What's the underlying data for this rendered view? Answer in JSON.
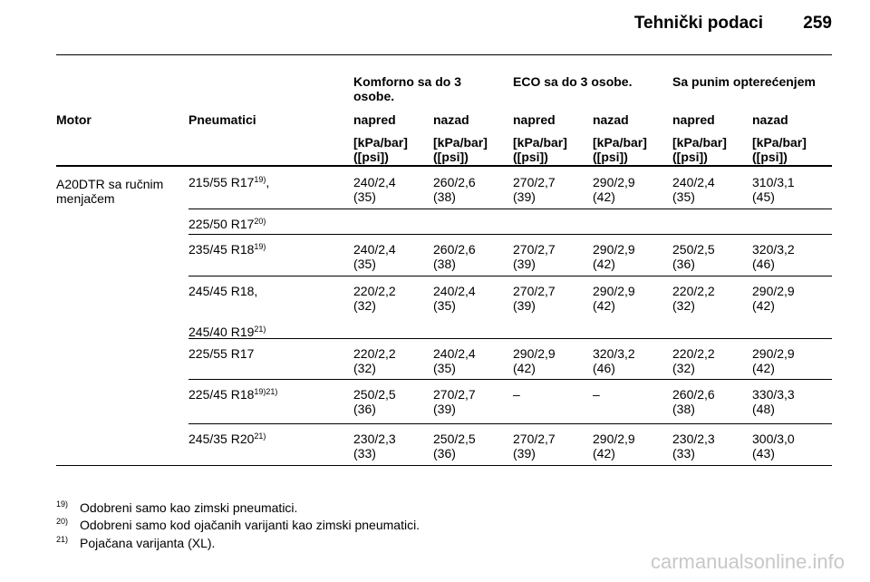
{
  "header": {
    "title": "Tehnički podaci",
    "page": "259"
  },
  "table": {
    "groups": [
      "Komforno sa do 3 osobe.",
      "ECO sa do 3 osobe.",
      "Sa punim opterećenjem"
    ],
    "columns": [
      "Motor",
      "Pneumatici",
      "napred",
      "nazad",
      "napred",
      "nazad",
      "napred",
      "nazad"
    ],
    "units": [
      "[kPa/bar] ([psi])",
      "[kPa/bar] ([psi])",
      "[kPa/bar] ([psi])",
      "[kPa/bar] ([psi])",
      "[kPa/bar] ([psi])",
      "[kPa/bar] ([psi])"
    ],
    "motor": "A20DTR sa ručnim menjačem",
    "rows": [
      {
        "tires": [
          {
            "text": "215/55 R17",
            "note": "19)",
            "suffix": ","
          }
        ],
        "values": [
          {
            "kpa": "240/2,4",
            "psi": "(35)"
          },
          {
            "kpa": "260/2,6",
            "psi": "(38)"
          },
          {
            "kpa": "270/2,7",
            "psi": "(39)"
          },
          {
            "kpa": "290/2,9",
            "psi": "(42)"
          },
          {
            "kpa": "240/2,4",
            "psi": "(35)"
          },
          {
            "kpa": "310/3,1",
            "psi": "(45)"
          }
        ]
      },
      {
        "tires": [
          {
            "text": "225/50 R17",
            "note": "20)"
          }
        ],
        "values": []
      },
      {
        "tires": [
          {
            "text": "235/45 R18",
            "note": "19)"
          }
        ],
        "values": [
          {
            "kpa": "240/2,4",
            "psi": "(35)"
          },
          {
            "kpa": "260/2,6",
            "psi": "(38)"
          },
          {
            "kpa": "270/2,7",
            "psi": "(39)"
          },
          {
            "kpa": "290/2,9",
            "psi": "(42)"
          },
          {
            "kpa": "250/2,5",
            "psi": "(36)"
          },
          {
            "kpa": "320/3,2",
            "psi": "(46)"
          }
        ]
      },
      {
        "tires": [
          {
            "text": "245/45 R18,"
          },
          {
            "text": "245/40 R19",
            "note": "21)"
          }
        ],
        "values": [
          {
            "kpa": "220/2,2",
            "psi": "(32)"
          },
          {
            "kpa": "240/2,4",
            "psi": "(35)"
          },
          {
            "kpa": "270/2,7",
            "psi": "(39)"
          },
          {
            "kpa": "290/2,9",
            "psi": "(42)"
          },
          {
            "kpa": "220/2,2",
            "psi": "(32)"
          },
          {
            "kpa": "290/2,9",
            "psi": "(42)"
          }
        ]
      },
      {
        "tires": [
          {
            "text": "225/55 R17"
          }
        ],
        "values": [
          {
            "kpa": "220/2,2",
            "psi": "(32)"
          },
          {
            "kpa": "240/2,4",
            "psi": "(35)"
          },
          {
            "kpa": "290/2,9",
            "psi": "(42)"
          },
          {
            "kpa": "320/3,2",
            "psi": "(46)"
          },
          {
            "kpa": "220/2,2",
            "psi": "(32)"
          },
          {
            "kpa": "290/2,9",
            "psi": "(42)"
          }
        ]
      },
      {
        "tires": [
          {
            "text": "225/45 R18",
            "note": "19)21)"
          }
        ],
        "values": [
          {
            "kpa": "250/2,5",
            "psi": "(36)"
          },
          {
            "kpa": "270/2,7",
            "psi": "(39)"
          },
          {
            "kpa": "–"
          },
          {
            "kpa": "–"
          },
          {
            "kpa": "260/2,6",
            "psi": "(38)"
          },
          {
            "kpa": "330/3,3",
            "psi": "(48)"
          }
        ]
      },
      {
        "tires": [
          {
            "text": "245/35 R20",
            "note": "21)"
          }
        ],
        "values": [
          {
            "kpa": "230/2,3",
            "psi": "(33)"
          },
          {
            "kpa": "250/2,5",
            "psi": "(36)"
          },
          {
            "kpa": "270/2,7",
            "psi": "(39)"
          },
          {
            "kpa": "290/2,9",
            "psi": "(42)"
          },
          {
            "kpa": "230/2,3",
            "psi": "(33)"
          },
          {
            "kpa": "300/3,0",
            "psi": "(43)"
          }
        ]
      }
    ]
  },
  "footnotes": [
    {
      "mark": "19)",
      "text": "Odobreni samo kao zimski pneumatici."
    },
    {
      "mark": "20)",
      "text": "Odobreni samo kod ojačanih varijanti kao zimski pneumatici."
    },
    {
      "mark": "21)",
      "text": "Pojačana varijanta (XL)."
    }
  ],
  "watermark": "carmanualsonline.info"
}
